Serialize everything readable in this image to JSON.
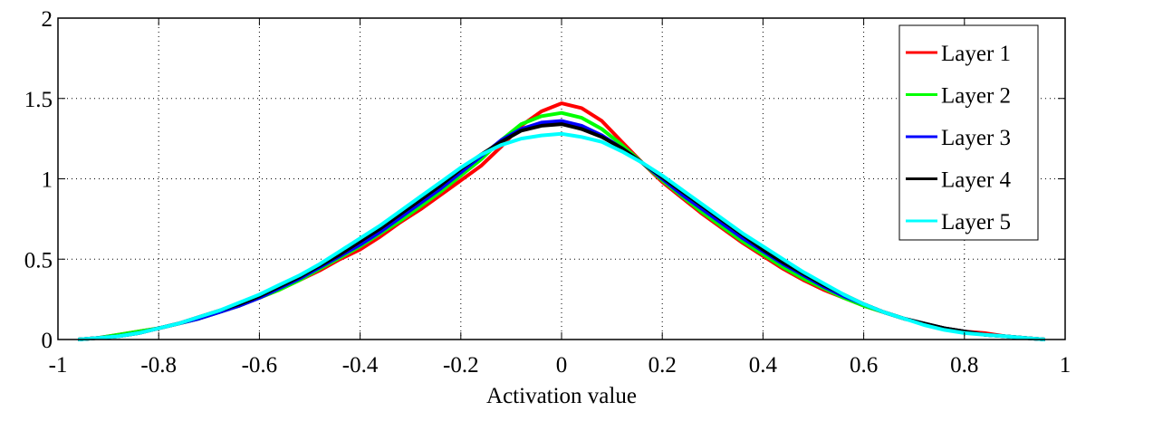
{
  "chart_data": {
    "type": "line",
    "title": "",
    "xlabel": "Activation value",
    "ylabel": "",
    "xlim": [
      -1,
      1
    ],
    "ylim": [
      0,
      2
    ],
    "grid": true,
    "legend_position": "top-right",
    "x_ticks": [
      "-1",
      "-0.8",
      "-0.6",
      "-0.4",
      "-0.2",
      "0",
      "0.2",
      "0.4",
      "0.6",
      "0.8",
      "1"
    ],
    "x_tick_values": [
      -1,
      -0.8,
      -0.6,
      -0.4,
      -0.2,
      0,
      0.2,
      0.4,
      0.6,
      0.8,
      1
    ],
    "y_ticks": [
      "0",
      "0.5",
      "1",
      "1.5",
      "2"
    ],
    "y_tick_values": [
      0,
      0.5,
      1,
      1.5,
      2
    ],
    "x": [
      -0.96,
      -0.92,
      -0.88,
      -0.84,
      -0.8,
      -0.76,
      -0.72,
      -0.68,
      -0.64,
      -0.6,
      -0.56,
      -0.52,
      -0.48,
      -0.44,
      -0.4,
      -0.36,
      -0.32,
      -0.28,
      -0.24,
      -0.2,
      -0.16,
      -0.12,
      -0.08,
      -0.04,
      0,
      0.04,
      0.08,
      0.12,
      0.16,
      0.2,
      0.24,
      0.28,
      0.32,
      0.36,
      0.4,
      0.44,
      0.48,
      0.52,
      0.56,
      0.6,
      0.64,
      0.68,
      0.72,
      0.76,
      0.8,
      0.84,
      0.88,
      0.92,
      0.96
    ],
    "series": [
      {
        "name": "Layer 1",
        "color": "#ff0000",
        "values": [
          0.0,
          0.01,
          0.03,
          0.05,
          0.07,
          0.1,
          0.13,
          0.17,
          0.21,
          0.26,
          0.31,
          0.37,
          0.43,
          0.5,
          0.56,
          0.64,
          0.73,
          0.81,
          0.9,
          0.99,
          1.08,
          1.2,
          1.33,
          1.42,
          1.47,
          1.44,
          1.36,
          1.23,
          1.1,
          0.98,
          0.88,
          0.78,
          0.69,
          0.6,
          0.52,
          0.44,
          0.37,
          0.31,
          0.26,
          0.21,
          0.17,
          0.13,
          0.1,
          0.07,
          0.05,
          0.04,
          0.02,
          0.01,
          0.0
        ]
      },
      {
        "name": "Layer 2",
        "color": "#00ff00",
        "values": [
          0.0,
          0.01,
          0.03,
          0.05,
          0.07,
          0.1,
          0.13,
          0.17,
          0.21,
          0.26,
          0.31,
          0.37,
          0.44,
          0.51,
          0.58,
          0.66,
          0.74,
          0.83,
          0.92,
          1.02,
          1.12,
          1.24,
          1.34,
          1.39,
          1.41,
          1.38,
          1.31,
          1.21,
          1.1,
          0.99,
          0.89,
          0.79,
          0.7,
          0.61,
          0.53,
          0.45,
          0.38,
          0.32,
          0.26,
          0.21,
          0.17,
          0.13,
          0.1,
          0.07,
          0.05,
          0.03,
          0.02,
          0.01,
          0.0
        ]
      },
      {
        "name": "Layer 3",
        "color": "#0000ff",
        "values": [
          0.0,
          0.01,
          0.02,
          0.04,
          0.07,
          0.1,
          0.13,
          0.17,
          0.21,
          0.26,
          0.32,
          0.38,
          0.45,
          0.52,
          0.59,
          0.67,
          0.76,
          0.85,
          0.94,
          1.04,
          1.14,
          1.24,
          1.31,
          1.35,
          1.36,
          1.33,
          1.27,
          1.19,
          1.1,
          1.0,
          0.9,
          0.81,
          0.72,
          0.63,
          0.55,
          0.47,
          0.4,
          0.33,
          0.27,
          0.22,
          0.17,
          0.13,
          0.1,
          0.07,
          0.05,
          0.03,
          0.02,
          0.01,
          0.0
        ]
      },
      {
        "name": "Layer 4",
        "color": "#000000",
        "values": [
          0.0,
          0.01,
          0.02,
          0.04,
          0.07,
          0.1,
          0.14,
          0.18,
          0.22,
          0.27,
          0.33,
          0.39,
          0.46,
          0.53,
          0.61,
          0.69,
          0.78,
          0.87,
          0.96,
          1.06,
          1.15,
          1.23,
          1.3,
          1.33,
          1.34,
          1.31,
          1.26,
          1.19,
          1.1,
          1.01,
          0.92,
          0.83,
          0.74,
          0.65,
          0.56,
          0.48,
          0.41,
          0.34,
          0.28,
          0.22,
          0.17,
          0.13,
          0.1,
          0.07,
          0.05,
          0.03,
          0.02,
          0.01,
          0.0
        ]
      },
      {
        "name": "Layer 5",
        "color": "#00ffff",
        "values": [
          0.0,
          0.01,
          0.02,
          0.04,
          0.07,
          0.1,
          0.14,
          0.18,
          0.23,
          0.28,
          0.34,
          0.4,
          0.47,
          0.55,
          0.63,
          0.71,
          0.8,
          0.89,
          0.98,
          1.07,
          1.15,
          1.21,
          1.25,
          1.27,
          1.28,
          1.26,
          1.23,
          1.17,
          1.1,
          1.02,
          0.93,
          0.84,
          0.75,
          0.66,
          0.58,
          0.5,
          0.42,
          0.35,
          0.28,
          0.22,
          0.17,
          0.13,
          0.09,
          0.06,
          0.04,
          0.03,
          0.02,
          0.01,
          0.0
        ]
      }
    ]
  }
}
